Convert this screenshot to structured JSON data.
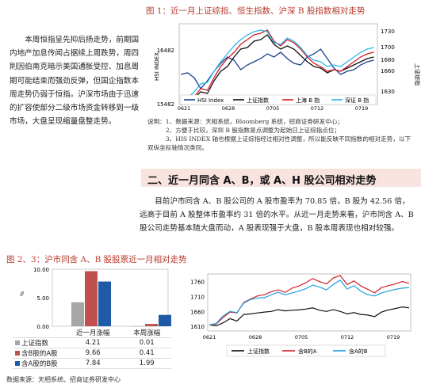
{
  "fig1": {
    "title": "图 1：近一月上证综指、恒生指数、沪深 B 股指数相对走势",
    "y_left_top": "16482",
    "y_left_label": "HSI INDEX",
    "y_left_bottom": "15482",
    "y_right_ticks": [
      "1730",
      "1700",
      "1680",
      "1660",
      "1630"
    ],
    "y_right_label": "上证综指",
    "x_ticks": [
      "0621",
      "0628",
      "0705",
      "0712",
      "0719"
    ],
    "legend": [
      "HSI Index",
      "上证指数",
      "上海 B 指",
      "深证 B 指"
    ],
    "colors": [
      "#1b3f8f",
      "#111111",
      "#d0202a",
      "#2eb6e8"
    ]
  },
  "sidebar": {
    "text": "本周恒指呈先抑后扬走势，前期国内地产加息传闻占据续上周跌势，周四則因伯南克暗示美国通胀受控、加息周期可能结束而强劲反弹，但国企指数本周走势仍弱于恒指。沪深市场由于迅速的扩容使部分二级市场资金转移到一级市场，大盘呈现缩量盘整走势。"
  },
  "notes": [
    "说明：1、数据来源：天相系统，Bloomberg 系统，招商证券研发中心；",
    "　　　2、方便于比较，深圳 B 股指数是点调整为起始日上证综指点位；",
    "　　　3、HIS INDEX 轴也根据上证综指经过相对性调整，所以能反映不同指数的相对走势，以下双纵坐标轴情况类同。"
  ],
  "section": {
    "title": "二、近一月同含 A、B，或 A、H 股公司相对走势"
  },
  "paragraph": "目前沪市同含 A、B 股公司的 A 股市盈率为 70.85 倍，B 股为 42.56 倍，远高于目前 A 股整体市盈率约 31 倍的水平。从近一月走势来看，沪市同含 A、B 股公司走势基本随大盘而动，A 股表现强于大盘，B 股本周表现也相对较强。",
  "fig23": {
    "title": "图 2、3：沪市同含 A、B 股股票近一月相对走势"
  },
  "chart_data": [
    {
      "type": "bar",
      "categories": [
        "近一月涨幅",
        "本周涨幅"
      ],
      "series": [
        {
          "name": "上证指数",
          "values": [
            4.21,
            0.01
          ]
        },
        {
          "name": "含B股的A股",
          "values": [
            9.66,
            0.41
          ]
        },
        {
          "name": "含A股的B股",
          "values": [
            7.84,
            1.99
          ]
        }
      ],
      "ylabel": "%",
      "ylim": [
        0,
        10
      ],
      "ytick_labels": [
        "10.00",
        "5.00",
        "0.00"
      ],
      "colors": [
        "#a6a6a6",
        "#c0504d",
        "#1f5aa6"
      ],
      "table": [
        [
          "4.21",
          "0.01"
        ],
        [
          "9.66",
          "0.41"
        ],
        [
          "7.84",
          "1.99"
        ]
      ]
    },
    {
      "type": "line",
      "x_tick_labels": [
        "0621",
        "0628",
        "0705",
        "0712",
        "0719"
      ],
      "y_tick_labels": [
        "1760",
        "1710",
        "1660",
        "1610"
      ],
      "ylim": [
        1600,
        1780
      ],
      "legend": [
        "上证指数",
        "含B的A",
        "含A的B"
      ],
      "colors": [
        "#111111",
        "#d0202a",
        "#1f9fe0"
      ],
      "series": [
        {
          "name": "上证指数",
          "values": [
            1615,
            1612,
            1622,
            1636,
            1628,
            1650,
            1652,
            1655,
            1658,
            1660,
            1666,
            1662,
            1664,
            1665,
            1668,
            1672,
            1664,
            1660,
            1666,
            1660,
            1652,
            1656,
            1650,
            1648,
            1643,
            1658,
            1665,
            1670,
            1675,
            1672
          ]
        },
        {
          "name": "含B的A",
          "values": [
            1615,
            1618,
            1640,
            1658,
            1655,
            1690,
            1702,
            1712,
            1716,
            1726,
            1732,
            1724,
            1738,
            1745,
            1756,
            1770,
            1760,
            1752,
            1772,
            1780,
            1750,
            1762,
            1745,
            1734,
            1722,
            1740,
            1746,
            1752,
            1760,
            1754
          ]
        },
        {
          "name": "含A的B",
          "values": [
            1615,
            1620,
            1645,
            1660,
            1656,
            1688,
            1700,
            1705,
            1706,
            1716,
            1724,
            1716,
            1722,
            1728,
            1736,
            1748,
            1742,
            1732,
            1750,
            1765,
            1735,
            1746,
            1728,
            1716,
            1712,
            1722,
            1728,
            1734,
            1738,
            1740
          ]
        }
      ]
    }
  ]
}
